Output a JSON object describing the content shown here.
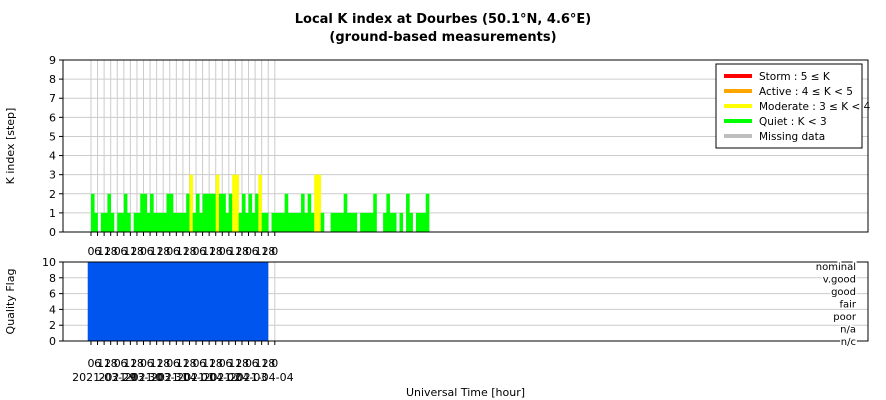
{
  "title": "Local K index at Dourbes (50.1°N, 4.6°E)",
  "subtitle": "(ground-based measurements)",
  "chart_data": [
    {
      "type": "bar",
      "name": "kindex",
      "ylabel": "K index [step]",
      "ylim": [
        0,
        9
      ],
      "yticks": [
        0,
        1,
        2,
        3,
        4,
        5,
        6,
        7,
        8,
        9
      ],
      "x_unit": "hours since 2021-03-29 00:00 UT (3-hour intervals)",
      "interval_hours": 3,
      "grid": true,
      "legend_position": "top-right",
      "legend": [
        {
          "label": "Storm : 5 ≤ K",
          "color": "#ff0000"
        },
        {
          "label": "Active : 4 ≤ K < 5",
          "color": "#ffa500"
        },
        {
          "label": "Moderate : 3 ≤ K < 4",
          "color": "#ffff00"
        },
        {
          "label": "Quiet : K < 3",
          "color": "#00ff00"
        },
        {
          "label": "Missing data",
          "color": "#bebebe"
        }
      ],
      "values": [
        2,
        1,
        0,
        1,
        1,
        2,
        1,
        0,
        1,
        1,
        2,
        1,
        0,
        1,
        1,
        2,
        2,
        1,
        2,
        1,
        1,
        1,
        1,
        2,
        2,
        1,
        1,
        1,
        1,
        2,
        3,
        1,
        2,
        1,
        2,
        2,
        2,
        2,
        3,
        2,
        2,
        1,
        2,
        3,
        3,
        1,
        2,
        1,
        2,
        1,
        2,
        3,
        1,
        1,
        0,
        1,
        1,
        1,
        1,
        2,
        1,
        1,
        1,
        1,
        2,
        1,
        2,
        1,
        3,
        3,
        1,
        0,
        0,
        1,
        1,
        1,
        1,
        2,
        1,
        1,
        1,
        0,
        1,
        1,
        1,
        1,
        2,
        0,
        0,
        1,
        2,
        1,
        1,
        0,
        1,
        0,
        2,
        1,
        0,
        1,
        1,
        1,
        2,
        0
      ]
    },
    {
      "type": "area",
      "name": "quality",
      "ylabel": "Quality Flag",
      "ylim": [
        0,
        10
      ],
      "yticks": [
        0,
        2,
        4,
        6,
        8,
        10
      ],
      "flag_labels": [
        "nominal",
        "v.good",
        "good",
        "fair",
        "poor",
        "n/a",
        "n/c"
      ],
      "color": "#0055ee",
      "xlabel": "Universal Time [hour]",
      "x_tick_labels": [
        "0",
        "6",
        "12",
        "18",
        "0",
        "6",
        "12",
        "18",
        "0",
        "6",
        "12",
        "18",
        "0",
        "6",
        "12",
        "18",
        "0",
        "6",
        "12",
        "18",
        "0",
        "6",
        "12",
        "18",
        "0",
        "6",
        "12",
        "18",
        "0"
      ],
      "dates": [
        "2021-03-29",
        "2021-03-30",
        "2021-03-31",
        "2021-04-01",
        "2021-04-02",
        "2021-04-03",
        "2021-04-04"
      ]
    }
  ]
}
